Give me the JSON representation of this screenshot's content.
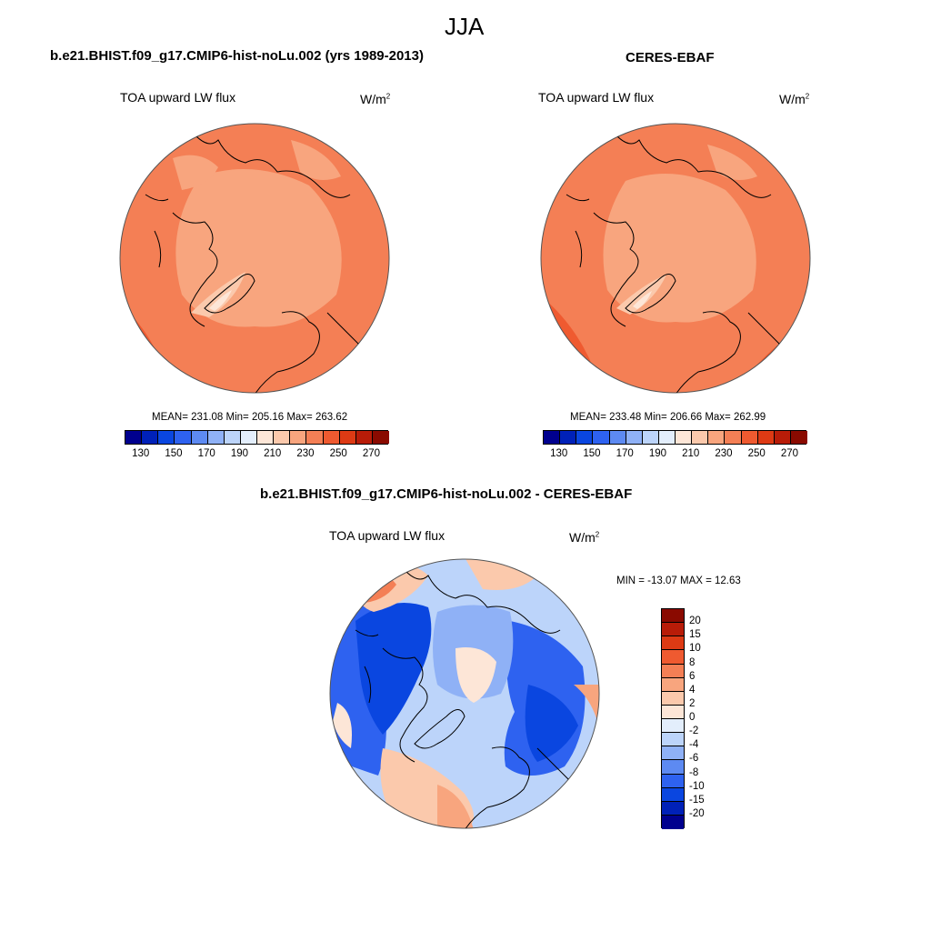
{
  "title": "JJA",
  "panels": [
    {
      "title": "b.e21.BHIST.f09_g17.CMIP6-hist-noLu.002 (yrs 1989-2013)",
      "variable": "TOA upward LW flux",
      "units_base": "W/m",
      "units_exp": "2",
      "stats": "MEAN= 231.08  Min= 205.16  Max= 263.62"
    },
    {
      "title": "CERES-EBAF",
      "variable": "TOA upward LW flux",
      "units_base": "W/m",
      "units_exp": "2",
      "stats": "MEAN= 233.48  Min= 206.66  Max= 262.99"
    },
    {
      "title": "b.e21.BHIST.f09_g17.CMIP6-hist-noLu.002 - CERES-EBAF",
      "variable": "TOA upward LW flux",
      "units_base": "W/m",
      "units_exp": "2",
      "stats": "MIN = -13.07 MAX =  12.63"
    }
  ],
  "colorbar_abs": {
    "colors": [
      "#00008e",
      "#0021b8",
      "#0a46e0",
      "#2e62f0",
      "#5d8af2",
      "#8fb1f6",
      "#bcd4fa",
      "#e3eefc",
      "#fde6d7",
      "#fbc9ac",
      "#f8a57e",
      "#f47f55",
      "#ef5a30",
      "#dd3a14",
      "#b81c08",
      "#8a0a00"
    ],
    "tick_labels": [
      "130",
      "150",
      "170",
      "190",
      "210",
      "230",
      "250",
      "270"
    ]
  },
  "colorbar_diff": {
    "colors": [
      "#8a0a00",
      "#b81c08",
      "#dd3a14",
      "#ef5a30",
      "#f47f55",
      "#f8a57e",
      "#fbc9ac",
      "#fde6d7",
      "#e3eefc",
      "#bcd4fa",
      "#8fb1f6",
      "#5d8af2",
      "#2e62f0",
      "#0a46e0",
      "#0021b8",
      "#00008e"
    ],
    "tick_labels": [
      "20",
      "15",
      "10",
      "8",
      "6",
      "4",
      "2",
      "0",
      "-2",
      "-4",
      "-6",
      "-8",
      "-10",
      "-15",
      "-20"
    ]
  },
  "map_colors": {
    "warm_dark": "#ef5a30",
    "warm_mid": "#f47f55",
    "warm_light": "#f8a57e",
    "warm_pale": "#fbc9ac",
    "blue_dark": "#0a46e0",
    "blue_mid": "#2e62f0",
    "blue_light": "#8fb1f6",
    "blue_pale": "#bcd4fa",
    "near_zero": "#e3eefc"
  }
}
